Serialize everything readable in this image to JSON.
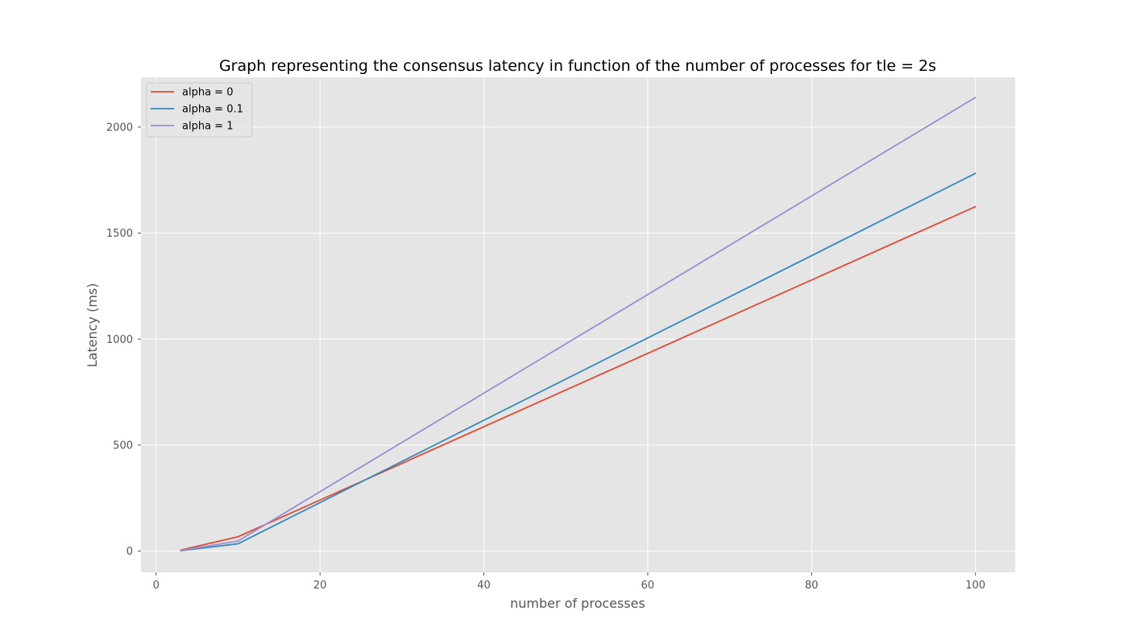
{
  "chart_data": {
    "type": "line",
    "title": "Graph representing the consensus latency in function of the number of processes for tle = 2s",
    "xlabel": "number of processes",
    "ylabel": "Latency (ms)",
    "xlim": [
      -1.85,
      104.85
    ],
    "ylim": [
      -100,
      2235
    ],
    "xticks": [
      0,
      20,
      40,
      60,
      80,
      100
    ],
    "yticks": [
      0,
      500,
      1000,
      1500,
      2000
    ],
    "grid": true,
    "legend_position": "top-left",
    "x": [
      3,
      10,
      100
    ],
    "series": [
      {
        "name": "alpha = 0",
        "color": "#E24A33",
        "values": [
          5,
          68,
          1625
        ]
      },
      {
        "name": "alpha = 0.1",
        "color": "#348ABD",
        "values": [
          2,
          35,
          1782
        ]
      },
      {
        "name": "alpha = 1",
        "color": "#988ED5",
        "values": [
          3,
          48,
          2140
        ]
      }
    ]
  }
}
